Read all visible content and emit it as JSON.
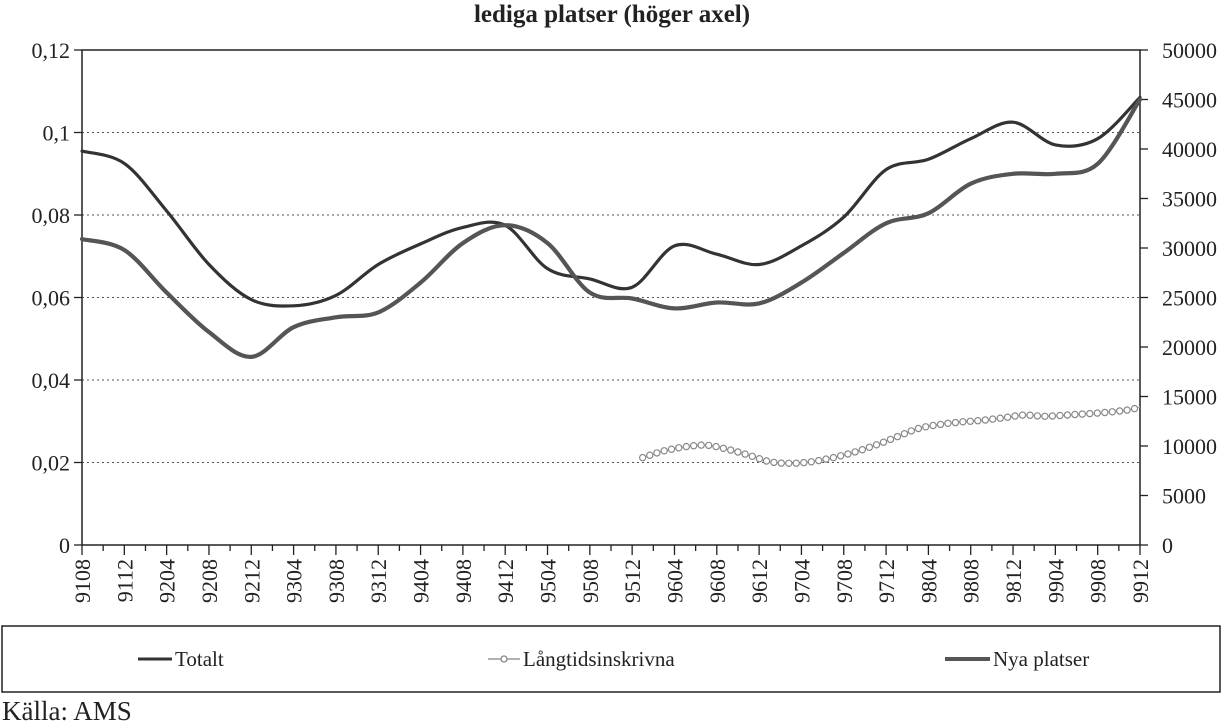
{
  "chart_data": {
    "type": "line",
    "title": "lediga platser (höger axel)",
    "source": "Källa: AMS",
    "x_tick_labels": [
      "9108",
      "9112",
      "9204",
      "9208",
      "9212",
      "9304",
      "9308",
      "9312",
      "9404",
      "9408",
      "9412",
      "9504",
      "9508",
      "9512",
      "9604",
      "9608",
      "9612",
      "9704",
      "9708",
      "9712",
      "9804",
      "9808",
      "9812",
      "9904",
      "9908",
      "9912"
    ],
    "y_left": {
      "ylim": [
        0,
        0.12
      ],
      "ticks": [
        "0",
        "0,02",
        "0,04",
        "0,06",
        "0,08",
        "0,1",
        "0,12"
      ]
    },
    "y_right": {
      "ylim": [
        0,
        50000
      ],
      "ticks": [
        "0",
        "5000",
        "10000",
        "15000",
        "20000",
        "25000",
        "30000",
        "35000",
        "40000",
        "45000",
        "50000"
      ]
    },
    "grid": "horizontal dotted",
    "legend_position": "bottom",
    "series": [
      {
        "name": "Totalt",
        "axis": "left",
        "color": "#333333",
        "style": "solid",
        "x": [
          "9108",
          "9112",
          "9204",
          "9208",
          "9212",
          "9304",
          "9308",
          "9312",
          "9404",
          "9408",
          "9412",
          "9504",
          "9508",
          "9512",
          "9604",
          "9608",
          "9612",
          "9704",
          "9708",
          "9712",
          "9804",
          "9808",
          "9812",
          "9904",
          "9908",
          "9912"
        ],
        "values": [
          0.0955,
          0.0925,
          0.081,
          0.068,
          0.0595,
          0.058,
          0.0605,
          0.068,
          0.073,
          0.077,
          0.0775,
          0.067,
          0.0645,
          0.0625,
          0.0725,
          0.0705,
          0.068,
          0.0725,
          0.0795,
          0.091,
          0.0935,
          0.0985,
          0.1025,
          0.097,
          0.0985,
          0.1085
        ]
      },
      {
        "name": "Långtidsinskrivna",
        "axis": "left",
        "color": "#999999",
        "style": "circle-markers",
        "x": [
          "9601",
          "9603",
          "9605",
          "9607",
          "9609",
          "9611",
          "9701",
          "9703",
          "9705",
          "9707",
          "9709",
          "9711",
          "9801",
          "9803",
          "9805",
          "9807",
          "9809",
          "9811",
          "9901",
          "9903",
          "9905",
          "9907",
          "9909",
          "9911",
          "9912"
        ],
        "values": [
          0.0212,
          0.0228,
          0.0238,
          0.0242,
          0.0232,
          0.0218,
          0.0202,
          0.0198,
          0.0202,
          0.0212,
          0.0225,
          0.0242,
          0.0262,
          0.0282,
          0.0292,
          0.0298,
          0.0302,
          0.0308,
          0.0315,
          0.0312,
          0.0315,
          0.0318,
          0.0322,
          0.0328,
          0.0335
        ]
      },
      {
        "name": "Nya platser",
        "axis": "right",
        "color": "#555555",
        "style": "thick",
        "x": [
          "9108",
          "9112",
          "9204",
          "9208",
          "9212",
          "9304",
          "9308",
          "9312",
          "9404",
          "9408",
          "9412",
          "9504",
          "9508",
          "9512",
          "9604",
          "9608",
          "9612",
          "9704",
          "9708",
          "9712",
          "9804",
          "9808",
          "9812",
          "9904",
          "9908",
          "9912"
        ],
        "values": [
          30900,
          29800,
          25500,
          21500,
          19000,
          22000,
          23000,
          23500,
          26500,
          30500,
          32300,
          30500,
          25500,
          24900,
          23900,
          24500,
          24400,
          26500,
          29500,
          32500,
          33500,
          36500,
          37500,
          37500,
          38500,
          45000
        ]
      }
    ]
  }
}
